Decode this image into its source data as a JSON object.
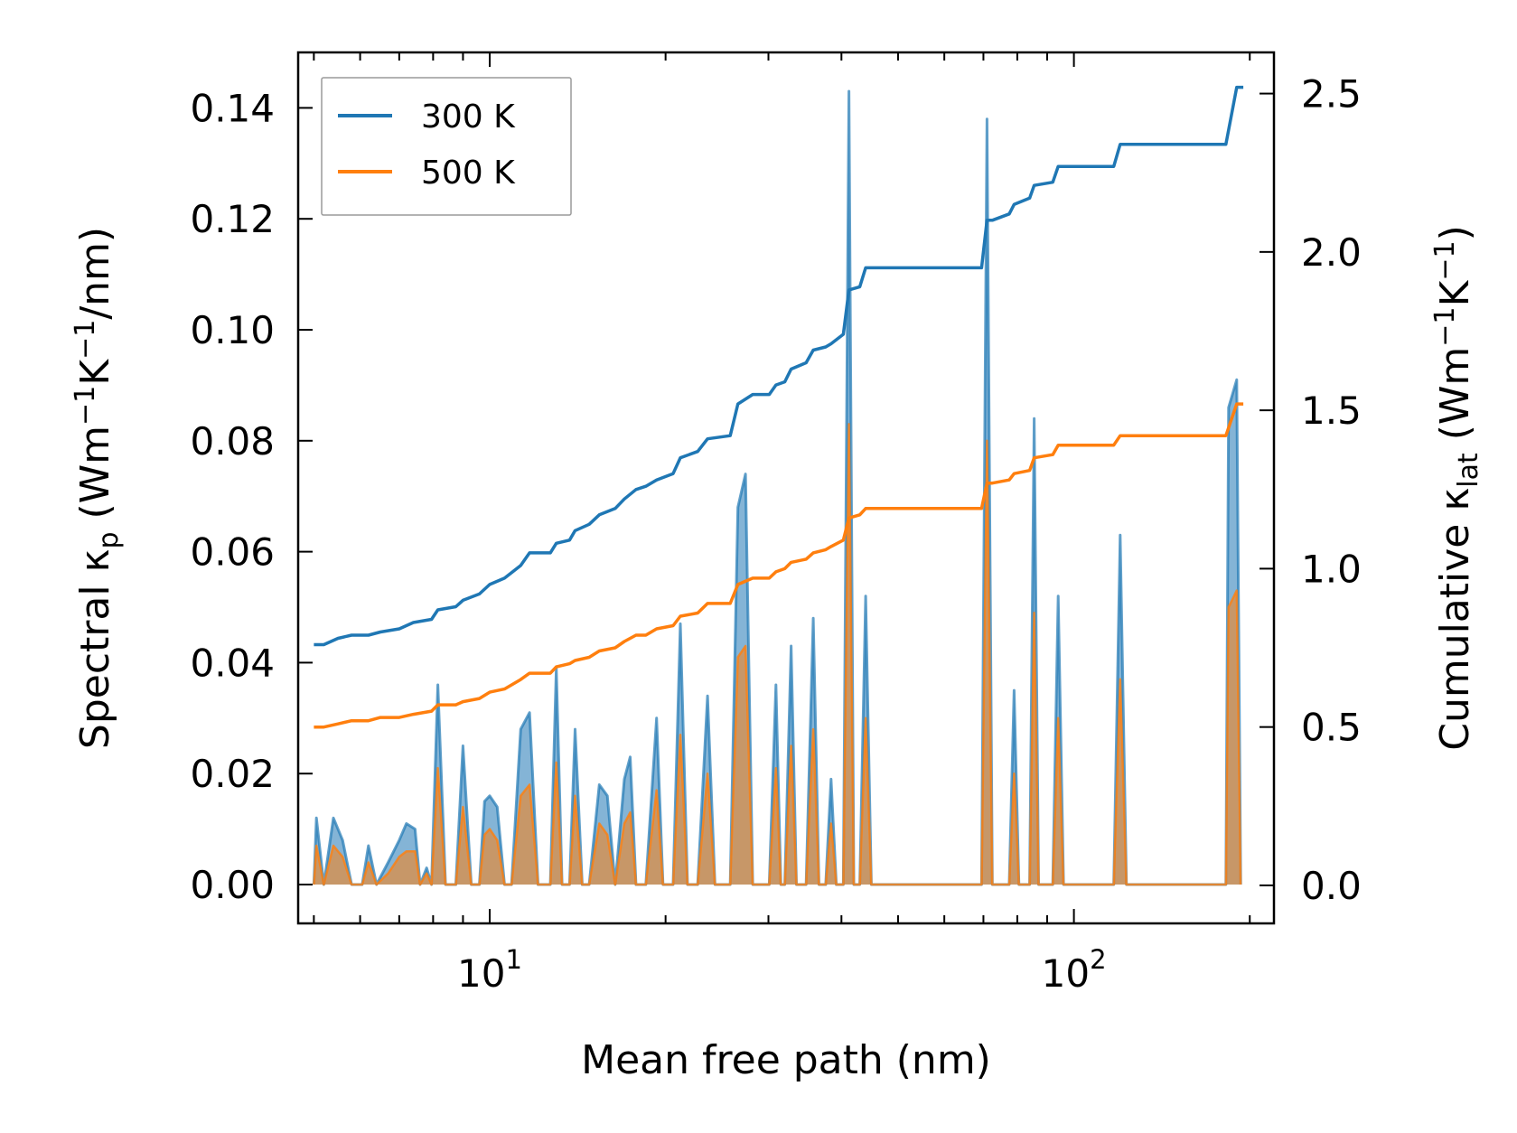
{
  "chart_data": {
    "type": "line",
    "xscale": "log",
    "xlim": [
      4.7,
      220
    ],
    "xlabel": "Mean free path (nm)",
    "ylabel_left": "Spectral κp (Wm⁻¹K⁻¹/nm)",
    "ylabel_left_parts": {
      "prefix": "Spectral κ",
      "sub": "p",
      "unit_open": " (Wm",
      "sup1": "−1",
      "mid": "K",
      "sup2": "−1",
      "unit_close": "/nm)"
    },
    "ylabel_right": "Cumulative κlat (Wm⁻¹K⁻¹)",
    "ylabel_right_parts": {
      "prefix": "Cumulative κ",
      "sub": "lat",
      "unit_open": " (Wm",
      "sup1": "−1",
      "mid": "K",
      "sup2": "−1",
      "unit_close": ")"
    },
    "ylim_left": [
      -0.007,
      0.15
    ],
    "ylim_right": [
      -0.12,
      2.63
    ],
    "x_ticks": [
      {
        "value": 10,
        "base": "10",
        "exp": "1"
      },
      {
        "value": 100,
        "base": "10",
        "exp": "2"
      }
    ],
    "y_ticks_left": [
      "0.00",
      "0.02",
      "0.04",
      "0.06",
      "0.08",
      "0.10",
      "0.12",
      "0.14"
    ],
    "y_ticks_right": [
      "0.0",
      "0.5",
      "1.0",
      "1.5",
      "2.0",
      "2.5"
    ],
    "legend": {
      "position": "upper-left",
      "entries": [
        "300 K",
        "500 K"
      ]
    },
    "colors": {
      "300K": "#1f77b4",
      "500K": "#ff7f0e",
      "fill300": "#1f77b4",
      "fill500": "#ff7f0e"
    },
    "spectral_300K": [
      [
        5.0,
        0.0
      ],
      [
        5.05,
        0.012
      ],
      [
        5.2,
        0.0
      ],
      [
        5.4,
        0.012
      ],
      [
        5.6,
        0.008
      ],
      [
        5.8,
        0.0
      ],
      [
        6.05,
        0.0
      ],
      [
        6.2,
        0.007
      ],
      [
        6.4,
        0.0
      ],
      [
        6.7,
        0.004
      ],
      [
        7.0,
        0.008
      ],
      [
        7.2,
        0.011
      ],
      [
        7.45,
        0.01
      ],
      [
        7.6,
        0.0
      ],
      [
        7.8,
        0.003
      ],
      [
        7.95,
        0.0
      ],
      [
        8.15,
        0.036
      ],
      [
        8.4,
        0.0
      ],
      [
        8.75,
        0.0
      ],
      [
        9.0,
        0.025
      ],
      [
        9.3,
        0.0
      ],
      [
        9.6,
        0.0
      ],
      [
        9.8,
        0.015
      ],
      [
        10.0,
        0.016
      ],
      [
        10.3,
        0.014
      ],
      [
        10.6,
        0.0
      ],
      [
        10.9,
        0.0
      ],
      [
        11.3,
        0.028
      ],
      [
        11.7,
        0.031
      ],
      [
        12.1,
        0.0
      ],
      [
        12.7,
        0.0
      ],
      [
        13.0,
        0.039
      ],
      [
        13.3,
        0.0
      ],
      [
        13.7,
        0.0
      ],
      [
        14.0,
        0.028
      ],
      [
        14.4,
        0.0
      ],
      [
        14.8,
        0.0
      ],
      [
        15.4,
        0.018
      ],
      [
        15.9,
        0.016
      ],
      [
        16.4,
        0.0
      ],
      [
        17.0,
        0.019
      ],
      [
        17.4,
        0.023
      ],
      [
        17.8,
        0.0
      ],
      [
        18.5,
        0.0
      ],
      [
        19.3,
        0.03
      ],
      [
        19.8,
        0.0
      ],
      [
        20.6,
        0.0
      ],
      [
        21.2,
        0.047
      ],
      [
        21.8,
        0.0
      ],
      [
        22.7,
        0.0
      ],
      [
        23.6,
        0.034
      ],
      [
        24.3,
        0.0
      ],
      [
        25.8,
        0.0
      ],
      [
        26.6,
        0.068
      ],
      [
        27.4,
        0.074
      ],
      [
        28.2,
        0.0
      ],
      [
        30.1,
        0.0
      ],
      [
        30.9,
        0.036
      ],
      [
        31.5,
        0.0
      ],
      [
        32.0,
        0.0
      ],
      [
        32.8,
        0.043
      ],
      [
        33.5,
        0.0
      ],
      [
        34.8,
        0.0
      ],
      [
        35.8,
        0.048
      ],
      [
        36.6,
        0.0
      ],
      [
        37.6,
        0.0
      ],
      [
        38.4,
        0.019
      ],
      [
        39.2,
        0.0
      ],
      [
        40.3,
        0.0
      ],
      [
        41.2,
        0.143
      ],
      [
        42.0,
        0.0
      ],
      [
        43.0,
        0.0
      ],
      [
        44.0,
        0.052
      ],
      [
        45.0,
        0.0
      ],
      [
        69.5,
        0.0
      ],
      [
        71.0,
        0.138
      ],
      [
        72.5,
        0.0
      ],
      [
        77.5,
        0.0
      ],
      [
        79.0,
        0.035
      ],
      [
        80.5,
        0.0
      ],
      [
        84.0,
        0.0
      ],
      [
        85.5,
        0.084
      ],
      [
        87.0,
        0.0
      ],
      [
        92.0,
        0.0
      ],
      [
        94.0,
        0.052
      ],
      [
        96.0,
        0.0
      ],
      [
        117.0,
        0.0
      ],
      [
        120.0,
        0.063
      ],
      [
        123.0,
        0.0
      ],
      [
        182.0,
        0.0
      ],
      [
        184.0,
        0.086
      ],
      [
        190.0,
        0.091
      ],
      [
        193.0,
        0.0
      ]
    ],
    "spectral_500K": [
      [
        5.0,
        0.0
      ],
      [
        5.05,
        0.007
      ],
      [
        5.2,
        0.0
      ],
      [
        5.4,
        0.007
      ],
      [
        5.6,
        0.005
      ],
      [
        5.8,
        0.0
      ],
      [
        6.05,
        0.0
      ],
      [
        6.2,
        0.004
      ],
      [
        6.4,
        0.0
      ],
      [
        6.7,
        0.002
      ],
      [
        7.0,
        0.005
      ],
      [
        7.2,
        0.006
      ],
      [
        7.45,
        0.006
      ],
      [
        7.6,
        0.0
      ],
      [
        7.8,
        0.002
      ],
      [
        7.95,
        0.0
      ],
      [
        8.15,
        0.021
      ],
      [
        8.4,
        0.0
      ],
      [
        8.75,
        0.0
      ],
      [
        9.0,
        0.014
      ],
      [
        9.3,
        0.0
      ],
      [
        9.6,
        0.0
      ],
      [
        9.8,
        0.009
      ],
      [
        10.0,
        0.01
      ],
      [
        10.3,
        0.008
      ],
      [
        10.6,
        0.0
      ],
      [
        10.9,
        0.0
      ],
      [
        11.3,
        0.016
      ],
      [
        11.7,
        0.018
      ],
      [
        12.1,
        0.0
      ],
      [
        12.7,
        0.0
      ],
      [
        13.0,
        0.022
      ],
      [
        13.3,
        0.0
      ],
      [
        13.7,
        0.0
      ],
      [
        14.0,
        0.016
      ],
      [
        14.4,
        0.0
      ],
      [
        14.8,
        0.0
      ],
      [
        15.4,
        0.011
      ],
      [
        15.9,
        0.009
      ],
      [
        16.4,
        0.0
      ],
      [
        17.0,
        0.011
      ],
      [
        17.4,
        0.013
      ],
      [
        17.8,
        0.0
      ],
      [
        18.5,
        0.0
      ],
      [
        19.3,
        0.017
      ],
      [
        19.8,
        0.0
      ],
      [
        20.6,
        0.0
      ],
      [
        21.2,
        0.027
      ],
      [
        21.8,
        0.0
      ],
      [
        22.7,
        0.0
      ],
      [
        23.6,
        0.02
      ],
      [
        24.3,
        0.0
      ],
      [
        25.8,
        0.0
      ],
      [
        26.6,
        0.041
      ],
      [
        27.4,
        0.043
      ],
      [
        28.2,
        0.0
      ],
      [
        30.1,
        0.0
      ],
      [
        30.9,
        0.021
      ],
      [
        31.5,
        0.0
      ],
      [
        32.0,
        0.0
      ],
      [
        32.8,
        0.025
      ],
      [
        33.5,
        0.0
      ],
      [
        34.8,
        0.0
      ],
      [
        35.8,
        0.028
      ],
      [
        36.6,
        0.0
      ],
      [
        37.6,
        0.0
      ],
      [
        38.4,
        0.011
      ],
      [
        39.2,
        0.0
      ],
      [
        40.3,
        0.0
      ],
      [
        41.2,
        0.083
      ],
      [
        42.0,
        0.0
      ],
      [
        43.0,
        0.0
      ],
      [
        44.0,
        0.03
      ],
      [
        45.0,
        0.0
      ],
      [
        69.5,
        0.0
      ],
      [
        71.0,
        0.08
      ],
      [
        72.5,
        0.0
      ],
      [
        77.5,
        0.0
      ],
      [
        79.0,
        0.02
      ],
      [
        80.5,
        0.0
      ],
      [
        84.0,
        0.0
      ],
      [
        85.5,
        0.049
      ],
      [
        87.0,
        0.0
      ],
      [
        92.0,
        0.0
      ],
      [
        94.0,
        0.03
      ],
      [
        96.0,
        0.0
      ],
      [
        117.0,
        0.0
      ],
      [
        120.0,
        0.037
      ],
      [
        123.0,
        0.0
      ],
      [
        182.0,
        0.0
      ],
      [
        184.0,
        0.05
      ],
      [
        190.0,
        0.053
      ],
      [
        193.0,
        0.0
      ]
    ],
    "cumulative_300K": [
      [
        5.0,
        0.76
      ],
      [
        5.2,
        0.76
      ],
      [
        5.5,
        0.78
      ],
      [
        5.8,
        0.79
      ],
      [
        6.2,
        0.79
      ],
      [
        6.5,
        0.8
      ],
      [
        7.0,
        0.81
      ],
      [
        7.4,
        0.83
      ],
      [
        7.95,
        0.84
      ],
      [
        8.15,
        0.87
      ],
      [
        8.75,
        0.88
      ],
      [
        9.0,
        0.9
      ],
      [
        9.6,
        0.92
      ],
      [
        10.0,
        0.95
      ],
      [
        10.6,
        0.97
      ],
      [
        11.3,
        1.01
      ],
      [
        11.7,
        1.05
      ],
      [
        12.7,
        1.05
      ],
      [
        13.0,
        1.08
      ],
      [
        13.7,
        1.09
      ],
      [
        14.0,
        1.12
      ],
      [
        14.8,
        1.14
      ],
      [
        15.4,
        1.17
      ],
      [
        16.4,
        1.19
      ],
      [
        17.0,
        1.22
      ],
      [
        17.8,
        1.25
      ],
      [
        18.5,
        1.26
      ],
      [
        19.3,
        1.28
      ],
      [
        20.6,
        1.3
      ],
      [
        21.2,
        1.35
      ],
      [
        22.7,
        1.37
      ],
      [
        23.6,
        1.41
      ],
      [
        25.8,
        1.42
      ],
      [
        26.6,
        1.52
      ],
      [
        28.2,
        1.55
      ],
      [
        30.1,
        1.55
      ],
      [
        30.9,
        1.58
      ],
      [
        32.0,
        1.59
      ],
      [
        32.8,
        1.63
      ],
      [
        34.8,
        1.65
      ],
      [
        35.8,
        1.69
      ],
      [
        37.6,
        1.7
      ],
      [
        38.4,
        1.71
      ],
      [
        40.3,
        1.74
      ],
      [
        41.2,
        1.88
      ],
      [
        43.0,
        1.89
      ],
      [
        44.0,
        1.95
      ],
      [
        69.5,
        1.95
      ],
      [
        71.0,
        2.1
      ],
      [
        72.5,
        2.1
      ],
      [
        77.5,
        2.12
      ],
      [
        79.0,
        2.15
      ],
      [
        84.0,
        2.17
      ],
      [
        85.5,
        2.21
      ],
      [
        92.0,
        2.22
      ],
      [
        94.0,
        2.27
      ],
      [
        117.0,
        2.27
      ],
      [
        120.0,
        2.34
      ],
      [
        182.0,
        2.34
      ],
      [
        190.0,
        2.52
      ],
      [
        195.0,
        2.52
      ]
    ],
    "cumulative_500K": [
      [
        5.0,
        0.5
      ],
      [
        5.2,
        0.5
      ],
      [
        5.5,
        0.51
      ],
      [
        5.8,
        0.52
      ],
      [
        6.2,
        0.52
      ],
      [
        6.5,
        0.53
      ],
      [
        7.0,
        0.53
      ],
      [
        7.4,
        0.54
      ],
      [
        7.95,
        0.55
      ],
      [
        8.15,
        0.57
      ],
      [
        8.75,
        0.57
      ],
      [
        9.0,
        0.58
      ],
      [
        9.6,
        0.59
      ],
      [
        10.0,
        0.61
      ],
      [
        10.6,
        0.62
      ],
      [
        11.3,
        0.65
      ],
      [
        11.7,
        0.67
      ],
      [
        12.7,
        0.67
      ],
      [
        13.0,
        0.69
      ],
      [
        13.7,
        0.7
      ],
      [
        14.0,
        0.71
      ],
      [
        14.8,
        0.72
      ],
      [
        15.4,
        0.74
      ],
      [
        16.4,
        0.75
      ],
      [
        17.0,
        0.77
      ],
      [
        17.8,
        0.79
      ],
      [
        18.5,
        0.79
      ],
      [
        19.3,
        0.81
      ],
      [
        20.6,
        0.82
      ],
      [
        21.2,
        0.85
      ],
      [
        22.7,
        0.86
      ],
      [
        23.6,
        0.89
      ],
      [
        25.8,
        0.89
      ],
      [
        26.6,
        0.95
      ],
      [
        28.2,
        0.97
      ],
      [
        30.1,
        0.97
      ],
      [
        30.9,
        0.99
      ],
      [
        32.0,
        1.0
      ],
      [
        32.8,
        1.02
      ],
      [
        34.8,
        1.03
      ],
      [
        35.8,
        1.05
      ],
      [
        37.6,
        1.06
      ],
      [
        38.4,
        1.07
      ],
      [
        40.3,
        1.09
      ],
      [
        41.2,
        1.16
      ],
      [
        43.0,
        1.17
      ],
      [
        44.0,
        1.19
      ],
      [
        69.5,
        1.19
      ],
      [
        71.0,
        1.27
      ],
      [
        72.5,
        1.27
      ],
      [
        77.5,
        1.28
      ],
      [
        79.0,
        1.3
      ],
      [
        84.0,
        1.31
      ],
      [
        85.5,
        1.35
      ],
      [
        92.0,
        1.36
      ],
      [
        94.0,
        1.39
      ],
      [
        117.0,
        1.39
      ],
      [
        120.0,
        1.42
      ],
      [
        182.0,
        1.42
      ],
      [
        190.0,
        1.52
      ],
      [
        195.0,
        1.52
      ]
    ]
  }
}
